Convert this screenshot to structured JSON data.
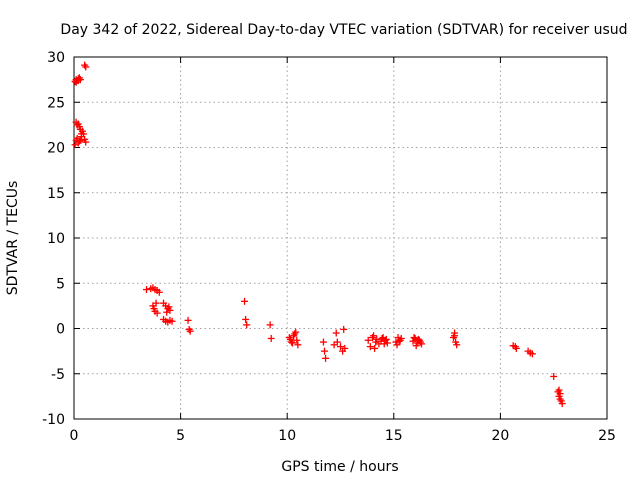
{
  "chart_data": {
    "type": "scatter",
    "title": "Day 342 of 2022, Sidereal Day-to-day VTEC variation (SDTVAR) for receiver usud",
    "xlabel": "GPS time / hours",
    "ylabel": "SDTVAR / TECUs",
    "xlim": [
      0,
      25
    ],
    "ylim": [
      -10,
      30
    ],
    "xticks": [
      "0",
      "5",
      "10",
      "15",
      "20",
      "25"
    ],
    "yticks": [
      "-10",
      "-5",
      "0",
      "5",
      "10",
      "15",
      "20",
      "25",
      "30"
    ],
    "grid": true,
    "marker": "+",
    "color": "#ff0000",
    "series": [
      {
        "name": "SDTVAR",
        "x": [
          0.05,
          0.1,
          0.15,
          0.2,
          0.25,
          0.3,
          0.1,
          0.2,
          0.5,
          0.55,
          0.1,
          0.15,
          0.2,
          0.25,
          0.3,
          0.35,
          0.4,
          0.3,
          0.45,
          0.55,
          0.05,
          0.1,
          0.15,
          0.2,
          0.25,
          0.35,
          0.5,
          3.4,
          3.6,
          3.7,
          3.8,
          3.9,
          4.0,
          3.7,
          3.75,
          3.8,
          3.9,
          3.85,
          4.2,
          4.3,
          4.4,
          4.5,
          4.35,
          4.45,
          4.2,
          4.3,
          4.4,
          4.5,
          4.6,
          5.35,
          5.4,
          5.45,
          8.0,
          8.05,
          8.1,
          9.2,
          9.25,
          10.1,
          10.2,
          10.3,
          10.4,
          10.5,
          10.15,
          10.25,
          10.35,
          10.45,
          11.7,
          11.75,
          11.8,
          12.3,
          12.35,
          12.5,
          12.6,
          12.65,
          12.7,
          12.2,
          13.8,
          13.9,
          14.0,
          14.05,
          14.1,
          14.15,
          14.2,
          14.3,
          14.4,
          14.5,
          14.6,
          14.7,
          14.45,
          14.55,
          14.65,
          15.1,
          15.2,
          15.3,
          15.15,
          15.25,
          15.35,
          15.9,
          16.0,
          16.1,
          16.2,
          16.3,
          15.95,
          16.05,
          16.15,
          16.25,
          17.8,
          17.85,
          17.9,
          17.95,
          17.85,
          20.6,
          20.7,
          20.75,
          21.3,
          21.4,
          21.5,
          22.5,
          22.7,
          22.75,
          22.8,
          22.85,
          22.9,
          22.8,
          22.75
        ],
        "y": [
          27.3,
          27.5,
          27.4,
          27.6,
          27.7,
          27.5,
          27.2,
          27.4,
          29.1,
          28.9,
          22.8,
          22.5,
          22.6,
          22.3,
          22.0,
          21.5,
          21.8,
          20.8,
          21.5,
          20.6,
          20.3,
          20.8,
          21.0,
          20.5,
          20.7,
          21.2,
          20.9,
          4.3,
          4.4,
          4.5,
          4.3,
          4.2,
          4.0,
          2.5,
          2.2,
          1.9,
          1.7,
          2.8,
          2.8,
          2.5,
          2.2,
          2.0,
          1.8,
          2.4,
          1.0,
          0.8,
          0.7,
          0.9,
          0.8,
          0.9,
          -0.1,
          -0.3,
          3.0,
          1.0,
          0.4,
          0.4,
          -1.1,
          -1.0,
          -1.5,
          -0.8,
          -0.4,
          -1.8,
          -1.2,
          -1.6,
          -0.6,
          -1.3,
          -1.5,
          -2.5,
          -3.3,
          -0.5,
          -1.5,
          -2.0,
          -2.5,
          -0.1,
          -2.2,
          -1.8,
          -1.3,
          -2.0,
          -1.0,
          -0.8,
          -2.2,
          -1.5,
          -1.2,
          -1.7,
          -1.4,
          -1.0,
          -1.3,
          -1.6,
          -1.1,
          -1.7,
          -1.2,
          -1.5,
          -1.0,
          -1.3,
          -1.8,
          -1.4,
          -1.1,
          -1.4,
          -1.1,
          -1.6,
          -1.3,
          -1.7,
          -1.0,
          -1.9,
          -1.2,
          -1.5,
          -1.0,
          -0.5,
          -1.5,
          -1.8,
          -0.8,
          -1.9,
          -2.0,
          -2.2,
          -2.5,
          -2.7,
          -2.8,
          -5.3,
          -7.0,
          -7.5,
          -7.8,
          -8.0,
          -8.3,
          -7.2,
          -6.8
        ]
      }
    ]
  }
}
